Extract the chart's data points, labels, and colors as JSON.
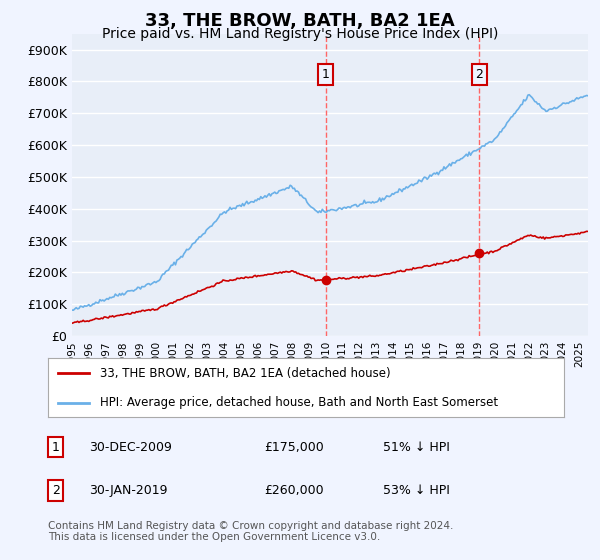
{
  "title": "33, THE BROW, BATH, BA2 1EA",
  "subtitle": "Price paid vs. HM Land Registry's House Price Index (HPI)",
  "title_fontsize": 13,
  "subtitle_fontsize": 10,
  "ylabel_ticks": [
    "£0",
    "£100K",
    "£200K",
    "£300K",
    "£400K",
    "£500K",
    "£600K",
    "£700K",
    "£800K",
    "£900K"
  ],
  "ytick_values": [
    0,
    100000,
    200000,
    300000,
    400000,
    500000,
    600000,
    700000,
    800000,
    900000
  ],
  "ylim": [
    0,
    950000
  ],
  "xlim_start": 1995.0,
  "xlim_end": 2025.5,
  "xtick_labels": [
    "1995",
    "1996",
    "1997",
    "1998",
    "1999",
    "2000",
    "2001",
    "2002",
    "2003",
    "2004",
    "2005",
    "2006",
    "2007",
    "2008",
    "2009",
    "2010",
    "2011",
    "2012",
    "2013",
    "2014",
    "2015",
    "2016",
    "2017",
    "2018",
    "2019",
    "2020",
    "2021",
    "2022",
    "2023",
    "2024",
    "2025"
  ],
  "background_color": "#f0f4ff",
  "plot_bg_color": "#e8eef8",
  "grid_color": "#ffffff",
  "hpi_color": "#6ab0e8",
  "price_color": "#cc0000",
  "sale1_x": 2009.99,
  "sale1_y": 175000,
  "sale1_label": "1",
  "sale2_x": 2019.08,
  "sale2_y": 260000,
  "sale2_label": "2",
  "vline_color": "#ff6666",
  "marker_color": "#cc0000",
  "legend_label_price": "33, THE BROW, BATH, BA2 1EA (detached house)",
  "legend_label_hpi": "HPI: Average price, detached house, Bath and North East Somerset",
  "table_row1": [
    "1",
    "30-DEC-2009",
    "£175,000",
    "51% ↓ HPI"
  ],
  "table_row2": [
    "2",
    "30-JAN-2019",
    "£260,000",
    "53% ↓ HPI"
  ],
  "footnote": "Contains HM Land Registry data © Crown copyright and database right 2024.\nThis data is licensed under the Open Government Licence v3.0.",
  "footnote_fontsize": 7.5
}
